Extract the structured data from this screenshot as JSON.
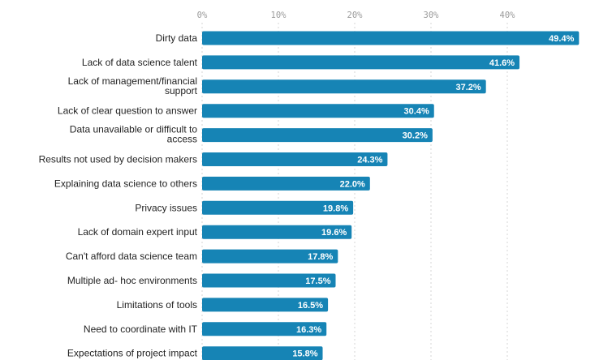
{
  "chart_data": {
    "type": "bar",
    "orientation": "horizontal",
    "categories": [
      "Dirty data",
      "Lack of data science talent",
      "Lack of management/financial support",
      "Lack of clear question to answer",
      "Data unavailable or difficult to access",
      "Results not used by decision makers",
      "Explaining data science to others",
      "Privacy issues",
      "Lack of domain expert input",
      "Can't afford data science team",
      "Multiple ad- hoc environments",
      "Limitations of tools",
      "Need to coordinate with IT",
      "Expectations of project impact"
    ],
    "category_lines": [
      [
        "Dirty data"
      ],
      [
        "Lack of data science talent"
      ],
      [
        "Lack of management/financial",
        "support"
      ],
      [
        "Lack of clear question to answer"
      ],
      [
        "Data unavailable or difficult to",
        "access"
      ],
      [
        "Results not used by decision makers"
      ],
      [
        "Explaining data science to others"
      ],
      [
        "Privacy issues"
      ],
      [
        "Lack of domain expert input"
      ],
      [
        "Can't afford data science team"
      ],
      [
        "Multiple ad- hoc environments"
      ],
      [
        "Limitations of tools"
      ],
      [
        "Need to coordinate with IT"
      ],
      [
        "Expectations of project impact"
      ]
    ],
    "values": [
      49.4,
      41.6,
      37.2,
      30.4,
      30.2,
      24.3,
      22.0,
      19.8,
      19.6,
      17.8,
      17.5,
      16.5,
      16.3,
      15.8
    ],
    "value_labels": [
      "49.4%",
      "41.6%",
      "37.2%",
      "30.4%",
      "30.2%",
      "24.3%",
      "22.0%",
      "19.8%",
      "19.6%",
      "17.8%",
      "17.5%",
      "16.5%",
      "16.3%",
      "15.8%"
    ],
    "xticks": [
      0,
      10,
      20,
      30,
      40
    ],
    "xtick_labels": [
      "0%",
      "10%",
      "20%",
      "30%",
      "40%"
    ],
    "xlim": [
      0,
      50
    ],
    "grid": true,
    "bar_color": "#1684b5",
    "title": "",
    "xlabel": "",
    "ylabel": ""
  }
}
